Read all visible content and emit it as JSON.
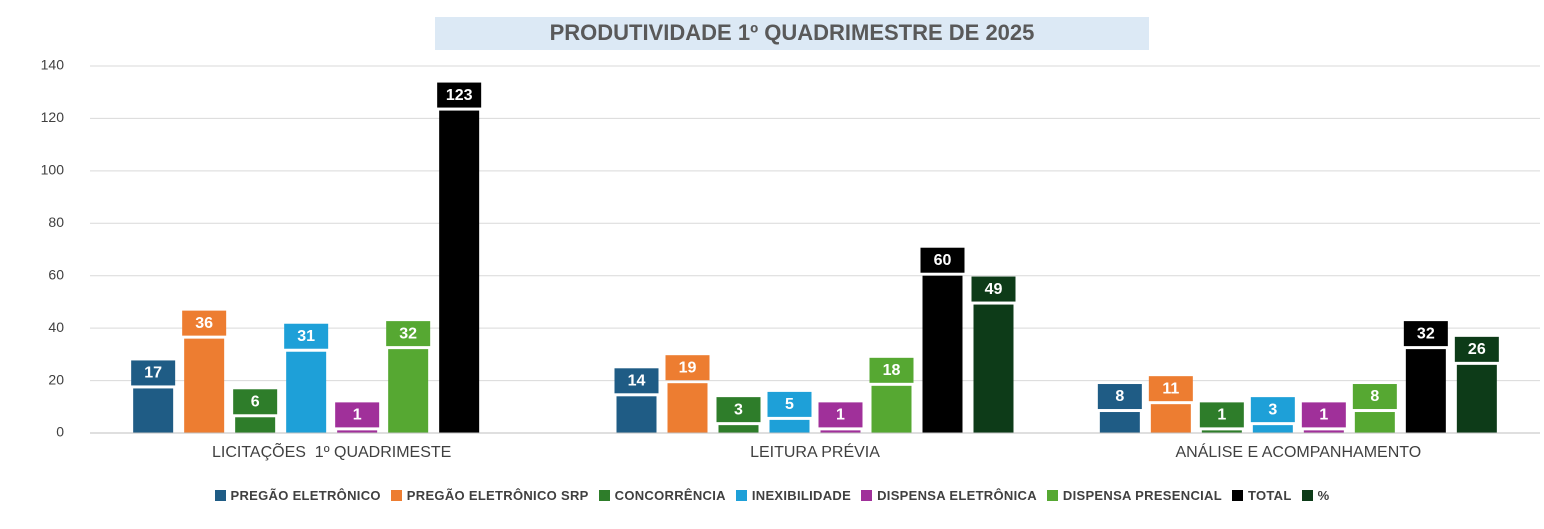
{
  "chart_data": {
    "type": "bar",
    "title": "PRODUTIVIDADE 1º QUADRIMESTRE DE 2025",
    "categories": [
      "LICITAÇÕES  1º QUADRIMESTE",
      "LEITURA PRÉVIA",
      "ANÁLISE E ACOMPANHAMENTO"
    ],
    "series": [
      {
        "name": "PREGÃO ELETRÔNICO",
        "color": "#1f5c85",
        "values": [
          17,
          14,
          8
        ]
      },
      {
        "name": "PREGÃO ELETRÔNICO SRP",
        "color": "#ed7d31",
        "values": [
          36,
          19,
          11
        ]
      },
      {
        "name": "CONCORRÊNCIA",
        "color": "#2e7d2a",
        "values": [
          6,
          3,
          1
        ]
      },
      {
        "name": "INEXIBILIDADE",
        "color": "#1ea0d8",
        "values": [
          31,
          5,
          3
        ]
      },
      {
        "name": "DISPENSA ELETRÔNICA",
        "color": "#a0309a",
        "values": [
          1,
          1,
          1
        ]
      },
      {
        "name": "DISPENSA PRESENCIAL",
        "color": "#56a832",
        "values": [
          32,
          18,
          8
        ]
      },
      {
        "name": "TOTAL",
        "color": "#000000",
        "values": [
          123,
          60,
          32
        ]
      },
      {
        "name": "%",
        "color": "#0d3b18",
        "values": [
          null,
          49,
          26
        ]
      }
    ],
    "ylim": [
      0,
      140
    ],
    "yticks": [
      0,
      20,
      40,
      60,
      80,
      100,
      120,
      140
    ],
    "grid": true,
    "legend": "bottom"
  }
}
